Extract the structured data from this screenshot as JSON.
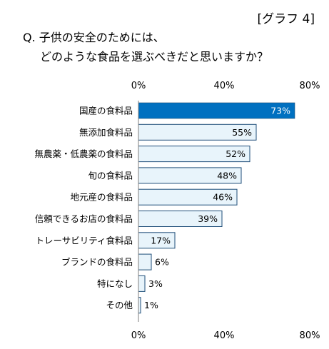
{
  "header": {
    "graph_tag": "[グラフ 4]",
    "question_line1": "Q. 子供の安全のためには、",
    "question_line2": "どのような食品を選ぶべきだと思いますか？"
  },
  "chart_data": {
    "type": "bar",
    "orientation": "horizontal",
    "title": "",
    "xlabel": "",
    "ylabel": "",
    "categories": [
      "国産の食料品",
      "無添加食料品",
      "無農薬・低農薬の食料品",
      "旬の食料品",
      "地元産の食料品",
      "信頼できるお店の食料品",
      "トレーサビリティ食料品",
      "ブランドの食料品",
      "特になし",
      "その他"
    ],
    "values": [
      73,
      55,
      52,
      48,
      46,
      39,
      17,
      6,
      3,
      1
    ],
    "value_labels": [
      "73%",
      "55%",
      "52%",
      "48%",
      "46%",
      "39%",
      "17%",
      "6%",
      "3%",
      "1%"
    ],
    "xlim": [
      0,
      80
    ],
    "ticks": [
      0,
      40,
      80
    ],
    "tick_labels": [
      "0%",
      "40%",
      "80%"
    ],
    "grid": false,
    "highlight_index": 0,
    "colors": {
      "highlight_fill": "#0070c0",
      "highlight_text": "#ffffff",
      "bar_fill": "#e8f4fb",
      "bar_stroke": "#1f4e79",
      "text": "#000000"
    }
  }
}
